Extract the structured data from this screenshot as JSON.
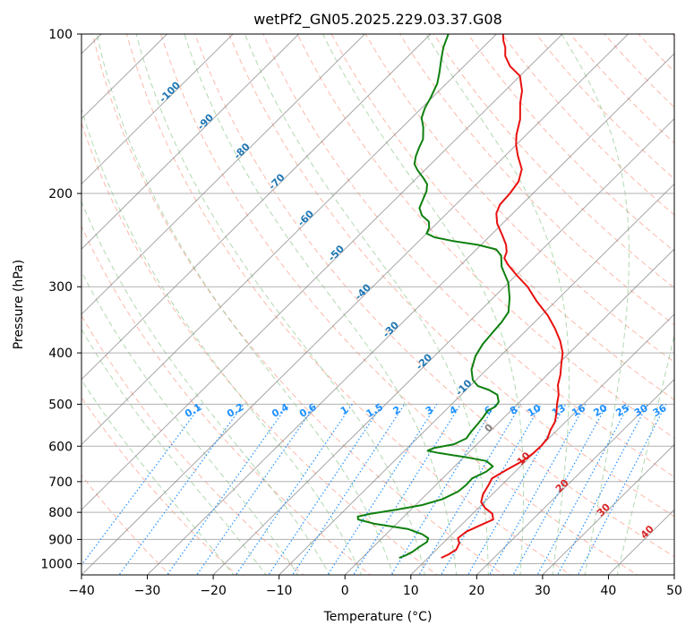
{
  "chart_data": {
    "type": "line",
    "title": "wetPf2_GN05.2025.229.03.37.G08",
    "xlabel": "Temperature (°C)",
    "ylabel": "Pressure (hPa)",
    "xlim": [
      -40,
      50
    ],
    "ylim": [
      1050,
      100
    ],
    "y_scale": "log",
    "x_ticks": [
      -40,
      -30,
      -20,
      -10,
      0,
      10,
      20,
      30,
      40,
      50
    ],
    "y_ticks": [
      100,
      200,
      300,
      400,
      500,
      600,
      700,
      800,
      900,
      1000
    ],
    "grid": true,
    "skew_t": true,
    "series": [
      {
        "color": "#e8110f",
        "points": [
          [
            12.0,
            975
          ],
          [
            12.6,
            960
          ],
          [
            13.0,
            940
          ],
          [
            12.5,
            915
          ],
          [
            11.5,
            895
          ],
          [
            11.8,
            870
          ],
          [
            13.0,
            845
          ],
          [
            14.0,
            825
          ],
          [
            13.0,
            805
          ],
          [
            11.0,
            785
          ],
          [
            9.5,
            765
          ],
          [
            8.6,
            740
          ],
          [
            8.0,
            710
          ],
          [
            7.5,
            690
          ],
          [
            8.4,
            665
          ],
          [
            9.5,
            640
          ],
          [
            9.9,
            620
          ],
          [
            10.0,
            600
          ],
          [
            9.8,
            580
          ],
          [
            9.0,
            560
          ],
          [
            8.4,
            540
          ],
          [
            7.3,
            520
          ],
          [
            6.0,
            500
          ],
          [
            4.8,
            480
          ],
          [
            3.2,
            460
          ],
          [
            2.0,
            440
          ],
          [
            0.5,
            420
          ],
          [
            -1.0,
            400
          ],
          [
            -3.2,
            380
          ],
          [
            -5.9,
            360
          ],
          [
            -9.0,
            340
          ],
          [
            -12.8,
            320
          ],
          [
            -16.5,
            300
          ],
          [
            -20.0,
            285
          ],
          [
            -23.0,
            272
          ],
          [
            -24.4,
            265
          ],
          [
            -25.0,
            258
          ],
          [
            -26.2,
            250
          ],
          [
            -28.2,
            240
          ],
          [
            -30.8,
            228
          ],
          [
            -32.5,
            218
          ],
          [
            -33.3,
            210
          ],
          [
            -33.5,
            200
          ],
          [
            -34.0,
            190
          ],
          [
            -35.4,
            180
          ],
          [
            -38.0,
            170
          ],
          [
            -40.0,
            162
          ],
          [
            -41.5,
            155
          ],
          [
            -43.3,
            145
          ],
          [
            -45.8,
            135
          ],
          [
            -47.4,
            128
          ],
          [
            -50.0,
            120
          ],
          [
            -53.0,
            115
          ],
          [
            -55.3,
            110
          ],
          [
            -56.6,
            106
          ],
          [
            -57.9,
            103
          ],
          [
            -59.0,
            100
          ]
        ]
      },
      {
        "color": "#0f800f",
        "points": [
          [
            5.6,
            975
          ],
          [
            6.2,
            965
          ],
          [
            6.7,
            950
          ],
          [
            7.0,
            930
          ],
          [
            7.4,
            910
          ],
          [
            7.0,
            895
          ],
          [
            5.5,
            880
          ],
          [
            2.5,
            860
          ],
          [
            -3.5,
            840
          ],
          [
            -6.5,
            825
          ],
          [
            -7.0,
            815
          ],
          [
            -5.5,
            805
          ],
          [
            -2.0,
            790
          ],
          [
            1.0,
            775
          ],
          [
            3.2,
            755
          ],
          [
            4.4,
            730
          ],
          [
            4.6,
            710
          ],
          [
            4.5,
            690
          ],
          [
            5.6,
            670
          ],
          [
            5.8,
            655
          ],
          [
            4.0,
            640
          ],
          [
            0.5,
            630
          ],
          [
            -4.5,
            618
          ],
          [
            -6.5,
            612
          ],
          [
            -6.0,
            605
          ],
          [
            -3.5,
            595
          ],
          [
            -2.5,
            580
          ],
          [
            -2.8,
            565
          ],
          [
            -3.0,
            545
          ],
          [
            -3.2,
            530
          ],
          [
            -3.5,
            515
          ],
          [
            -3.0,
            505
          ],
          [
            -3.2,
            495
          ],
          [
            -4.5,
            480
          ],
          [
            -6.5,
            470
          ],
          [
            -8.8,
            462
          ],
          [
            -10.5,
            450
          ],
          [
            -12.3,
            430
          ],
          [
            -13.8,
            405
          ],
          [
            -14.5,
            385
          ],
          [
            -14.8,
            365
          ],
          [
            -15.0,
            350
          ],
          [
            -15.5,
            335
          ],
          [
            -17.5,
            315
          ],
          [
            -20.0,
            295
          ],
          [
            -23.5,
            275
          ],
          [
            -25.3,
            262
          ],
          [
            -27.0,
            255
          ],
          [
            -30.5,
            250
          ],
          [
            -34.8,
            246
          ],
          [
            -38.2,
            242
          ],
          [
            -40.0,
            238
          ],
          [
            -40.5,
            232
          ],
          [
            -41.5,
            226
          ],
          [
            -43.5,
            220
          ],
          [
            -45.0,
            213
          ],
          [
            -45.8,
            205
          ],
          [
            -46.5,
            198
          ],
          [
            -47.5,
            192
          ],
          [
            -49.0,
            187
          ],
          [
            -51.0,
            181
          ],
          [
            -52.5,
            176
          ],
          [
            -53.5,
            170
          ],
          [
            -54.3,
            164
          ],
          [
            -55.0,
            158
          ],
          [
            -56.8,
            150
          ],
          [
            -58.5,
            144
          ],
          [
            -59.5,
            138
          ],
          [
            -60.2,
            132
          ],
          [
            -61.4,
            124
          ],
          [
            -62.8,
            118
          ],
          [
            -64.4,
            112
          ],
          [
            -66.0,
            106
          ],
          [
            -67.3,
            100
          ]
        ]
      }
    ],
    "isotherm_labels_c": [
      -100,
      -90,
      -80,
      -70,
      -60,
      -50,
      -40,
      -30,
      -20,
      -10,
      0,
      10,
      20,
      30,
      40
    ],
    "isotherm_label_colors": {
      "cold": "#1f77b4",
      "zero": "#808080",
      "warm": "#d62728"
    },
    "mixing_ratio_labels": [
      "0.1",
      "0.2",
      "0.4",
      "0.6",
      "1",
      "1.5",
      "2",
      "3",
      "4",
      "6",
      "8",
      "10",
      "13",
      "16",
      "20",
      "25",
      "30",
      "36"
    ],
    "mixing_ratio_values": [
      0.1,
      0.2,
      0.4,
      0.6,
      1,
      1.5,
      2,
      3,
      4,
      6,
      8,
      10,
      13,
      16,
      20,
      25,
      30,
      36
    ],
    "mixing_ratio_color": "#1e90ff",
    "isotherm_color": "#808080",
    "dry_adiabat_color": "#fa8064",
    "moist_adiabat_color": "#64b464",
    "special_curve_color": "#d2b48c"
  }
}
